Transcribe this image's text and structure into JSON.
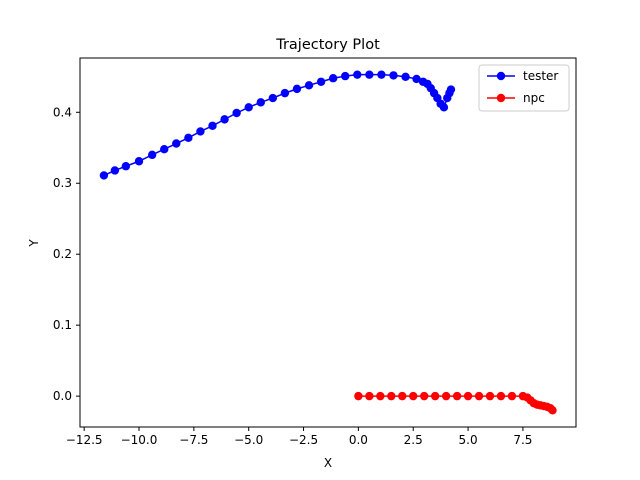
{
  "chart_data": {
    "type": "line",
    "title": "Trajectory Plot",
    "xlabel": "X",
    "ylabel": "Y",
    "xlim": [
      -12.69,
      9.92
    ],
    "ylim": [
      -0.0435,
      0.4765
    ],
    "xticks": [
      -12.5,
      -10.0,
      -7.5,
      -5.0,
      -2.5,
      0.0,
      2.5,
      5.0,
      7.5
    ],
    "xtick_labels": [
      "−12.5",
      "−10.0",
      "−7.5",
      "−5.0",
      "−2.5",
      "0.0",
      "2.5",
      "5.0",
      "7.5"
    ],
    "yticks": [
      0.0,
      0.1,
      0.2,
      0.3,
      0.4
    ],
    "ytick_labels": [
      "0.0",
      "0.1",
      "0.2",
      "0.3",
      "0.4"
    ],
    "grid": false,
    "legend_position": "top-right",
    "marker": "circle",
    "series": [
      {
        "name": "tester",
        "color": "#0000ff",
        "x": [
          -11.6,
          -11.1,
          -10.6,
          -10.0,
          -9.4,
          -8.85,
          -8.3,
          -7.75,
          -7.2,
          -6.65,
          -6.1,
          -5.55,
          -5.0,
          -4.45,
          -3.9,
          -3.35,
          -2.8,
          -2.25,
          -1.7,
          -1.15,
          -0.6,
          -0.05,
          0.5,
          1.05,
          1.6,
          2.15,
          2.65,
          2.95,
          3.15,
          3.3,
          3.45,
          3.6,
          3.75,
          3.9,
          4.05,
          4.15,
          4.22
        ],
        "y": [
          0.311,
          0.318,
          0.324,
          0.331,
          0.34,
          0.348,
          0.356,
          0.364,
          0.373,
          0.381,
          0.39,
          0.399,
          0.407,
          0.414,
          0.42,
          0.427,
          0.433,
          0.438,
          0.443,
          0.448,
          0.451,
          0.453,
          0.453,
          0.453,
          0.452,
          0.45,
          0.447,
          0.443,
          0.44,
          0.434,
          0.427,
          0.42,
          0.412,
          0.407,
          0.42,
          0.427,
          0.432
        ]
      },
      {
        "name": "npc",
        "color": "#ff0000",
        "x": [
          0.0,
          0.5,
          1.0,
          1.5,
          2.0,
          2.5,
          3.0,
          3.5,
          4.0,
          4.5,
          5.0,
          5.5,
          6.0,
          6.5,
          7.0,
          7.5,
          7.7,
          7.85,
          8.0,
          8.15,
          8.3,
          8.45,
          8.6,
          8.75,
          8.85
        ],
        "y": [
          0.0,
          0.0,
          0.0,
          0.0,
          0.0,
          0.0,
          0.0,
          0.0,
          0.0,
          0.0,
          0.0,
          0.0,
          0.0,
          0.0,
          0.0,
          0.0,
          -0.002,
          -0.006,
          -0.01,
          -0.012,
          -0.013,
          -0.014,
          -0.015,
          -0.017,
          -0.02
        ]
      }
    ]
  }
}
